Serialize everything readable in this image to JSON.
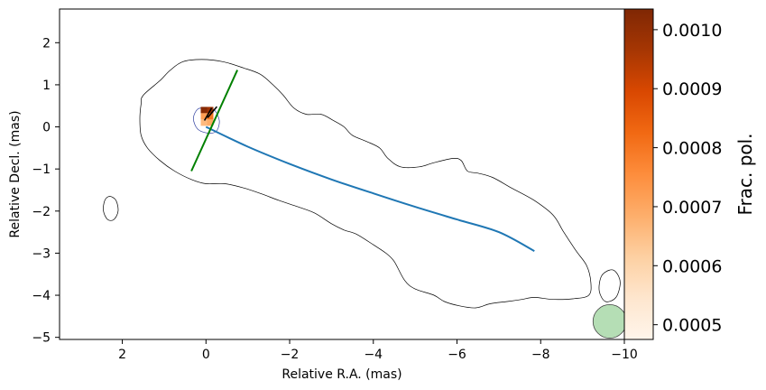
{
  "chart_data": {
    "type": "contour-map",
    "xlabel": "Relative R.A. (mas)",
    "ylabel": "Relative Decl. (mas)",
    "xlim": [
      3.5,
      -10.0
    ],
    "ylim": [
      -5.05,
      2.8
    ],
    "x_inverted": true,
    "xticks": [
      2,
      0,
      -2,
      -4,
      -6,
      -8,
      -10
    ],
    "xtick_labels": [
      "2",
      "0",
      "−2",
      "−4",
      "−6",
      "−8",
      "−10"
    ],
    "yticks": [
      2,
      1,
      0,
      -1,
      -2,
      -3,
      -4,
      -5
    ],
    "ytick_labels": [
      "2",
      "1",
      "0",
      "−1",
      "−2",
      "−3",
      "−4",
      "−5"
    ],
    "grid": false,
    "contours": [
      {
        "name": "jet-outline",
        "points": [
          [
            1.5,
            0.75
          ],
          [
            1.1,
            1.1
          ],
          [
            0.85,
            1.35
          ],
          [
            0.55,
            1.55
          ],
          [
            0.1,
            1.6
          ],
          [
            -0.4,
            1.55
          ],
          [
            -0.9,
            1.4
          ],
          [
            -1.3,
            1.25
          ],
          [
            -1.6,
            1.0
          ],
          [
            -1.85,
            0.75
          ],
          [
            -2.1,
            0.45
          ],
          [
            -2.4,
            0.3
          ],
          [
            -2.75,
            0.3
          ],
          [
            -3.05,
            0.15
          ],
          [
            -3.3,
            0.0
          ],
          [
            -3.5,
            -0.2
          ],
          [
            -3.85,
            -0.35
          ],
          [
            -4.15,
            -0.5
          ],
          [
            -4.35,
            -0.75
          ],
          [
            -4.65,
            -0.95
          ],
          [
            -5.1,
            -0.95
          ],
          [
            -5.45,
            -0.85
          ],
          [
            -5.9,
            -0.75
          ],
          [
            -6.1,
            -0.8
          ],
          [
            -6.25,
            -1.05
          ],
          [
            -6.5,
            -1.1
          ],
          [
            -6.85,
            -1.2
          ],
          [
            -7.3,
            -1.45
          ],
          [
            -7.85,
            -1.75
          ],
          [
            -8.3,
            -2.1
          ],
          [
            -8.55,
            -2.5
          ],
          [
            -8.85,
            -2.95
          ],
          [
            -9.1,
            -3.3
          ],
          [
            -9.2,
            -3.7
          ],
          [
            -9.15,
            -4.0
          ],
          [
            -8.8,
            -4.08
          ],
          [
            -8.3,
            -4.1
          ],
          [
            -7.85,
            -4.05
          ],
          [
            -7.55,
            -4.1
          ],
          [
            -7.2,
            -4.15
          ],
          [
            -6.8,
            -4.2
          ],
          [
            -6.45,
            -4.3
          ],
          [
            -6.05,
            -4.25
          ],
          [
            -5.7,
            -4.15
          ],
          [
            -5.45,
            -4.0
          ],
          [
            -5.0,
            -3.85
          ],
          [
            -4.75,
            -3.65
          ],
          [
            -4.5,
            -3.2
          ],
          [
            -4.3,
            -3.0
          ],
          [
            -4.0,
            -2.8
          ],
          [
            -3.6,
            -2.55
          ],
          [
            -3.3,
            -2.45
          ],
          [
            -3.0,
            -2.3
          ],
          [
            -2.6,
            -2.05
          ],
          [
            -2.2,
            -1.9
          ],
          [
            -1.75,
            -1.75
          ],
          [
            -1.35,
            -1.6
          ],
          [
            -0.9,
            -1.45
          ],
          [
            -0.45,
            -1.35
          ],
          [
            0.0,
            -1.35
          ],
          [
            0.35,
            -1.25
          ],
          [
            0.75,
            -1.05
          ],
          [
            1.1,
            -0.8
          ],
          [
            1.4,
            -0.5
          ],
          [
            1.55,
            -0.2
          ],
          [
            1.58,
            0.2
          ],
          [
            1.55,
            0.55
          ],
          [
            1.5,
            0.75
          ]
        ]
      },
      {
        "name": "left-blob",
        "points": [
          [
            2.3,
            -1.65
          ],
          [
            2.15,
            -1.75
          ],
          [
            2.1,
            -2.0
          ],
          [
            2.2,
            -2.2
          ],
          [
            2.35,
            -2.2
          ],
          [
            2.45,
            -2.0
          ],
          [
            2.42,
            -1.75
          ],
          [
            2.3,
            -1.65
          ]
        ]
      },
      {
        "name": "core-contour",
        "points": [
          [
            0.0,
            0.45
          ],
          [
            -0.2,
            0.4
          ],
          [
            -0.32,
            0.15
          ],
          [
            -0.25,
            -0.1
          ],
          [
            -0.05,
            -0.15
          ],
          [
            0.2,
            -0.05
          ],
          [
            0.3,
            0.2
          ],
          [
            0.2,
            0.42
          ],
          [
            0.0,
            0.45
          ]
        ]
      },
      {
        "name": "right-blob",
        "points": [
          [
            -9.65,
            -3.4
          ],
          [
            -9.45,
            -3.55
          ],
          [
            -9.4,
            -3.9
          ],
          [
            -9.55,
            -4.15
          ],
          [
            -9.8,
            -4.05
          ],
          [
            -9.9,
            -3.7
          ],
          [
            -9.8,
            -3.45
          ],
          [
            -9.65,
            -3.4
          ]
        ]
      }
    ],
    "series": [
      {
        "type": "line",
        "color": "#1f77b4",
        "points": [
          [
            0.0,
            0.0
          ],
          [
            -1.0,
            -0.47
          ],
          [
            -2.0,
            -0.88
          ],
          [
            -3.0,
            -1.25
          ],
          [
            -4.0,
            -1.58
          ],
          [
            -5.0,
            -1.9
          ],
          [
            -6.0,
            -2.2
          ],
          [
            -7.0,
            -2.5
          ],
          [
            -7.85,
            -2.95
          ]
        ]
      },
      {
        "type": "line",
        "color": "#008000",
        "points": [
          [
            0.35,
            -1.05
          ],
          [
            -0.75,
            1.35
          ]
        ]
      }
    ],
    "pol_pixels": [
      {
        "x": 0.05,
        "y": 0.4,
        "value": 0.00102
      },
      {
        "x": -0.1,
        "y": 0.4,
        "value": 0.00098
      },
      {
        "x": 0.05,
        "y": 0.25,
        "value": 0.00072
      },
      {
        "x": -0.1,
        "y": 0.25,
        "value": 0.0008
      },
      {
        "x": 0.05,
        "y": 0.1,
        "value": 0.00066
      },
      {
        "x": -0.1,
        "y": 0.1,
        "value": 0.00069
      }
    ],
    "evpa_ticks": [
      {
        "x": -0.15,
        "y": 0.35,
        "angle": -40
      },
      {
        "x": -0.05,
        "y": 0.3,
        "angle": -30
      }
    ],
    "beam": {
      "x": -9.65,
      "y": -4.62,
      "radius": 0.4,
      "color": "#2ca02c"
    },
    "colorbar": {
      "label": "Frac. pol.",
      "cmap": "Oranges",
      "vmin": 0.000475,
      "vmax": 0.001035,
      "ticks": [
        0.001,
        0.0009,
        0.0008,
        0.0007,
        0.0006,
        0.0005
      ],
      "tick_labels": [
        "0.0010",
        "0.0009",
        "0.0008",
        "0.0007",
        "0.0006",
        "0.0005"
      ]
    }
  }
}
